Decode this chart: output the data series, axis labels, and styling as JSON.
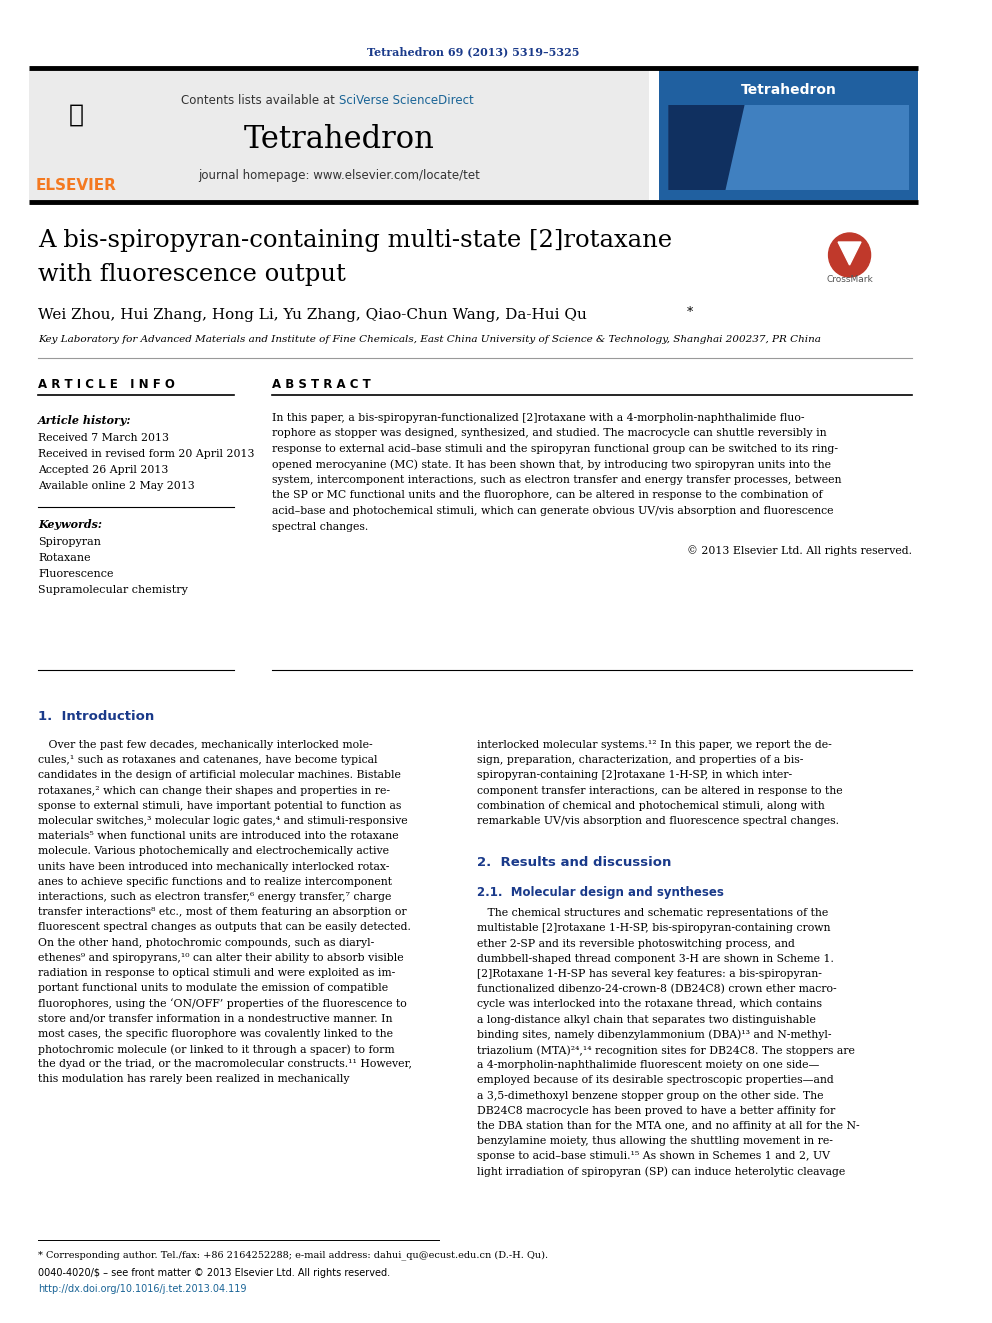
{
  "journal_ref": "Tetrahedron 69 (2013) 5319–5325",
  "header_contents": "Contents lists available at SciVerse ScienceDirect",
  "journal_name": "Tetrahedron",
  "journal_homepage": "journal homepage: www.elsevier.com/locate/tet",
  "title": "A bis-spiropyran-containing multi-state [2]rotaxane\nwith fluorescence output",
  "authors": "Wei Zhou, Hui Zhang, Hong Li, Yu Zhang, Qiao-Chun Wang, Da-Hui Qu",
  "affiliation": "Key Laboratory for Advanced Materials and Institute of Fine Chemicals, East China University of Science & Technology, Shanghai 200237, PR China",
  "article_info_header": "A R T I C L E   I N F O",
  "abstract_header": "A B S T R A C T",
  "article_history_label": "Article history:",
  "received": "Received 7 March 2013",
  "revised": "Received in revised form 20 April 2013",
  "accepted": "Accepted 26 April 2013",
  "available": "Available online 2 May 2013",
  "keywords_label": "Keywords:",
  "keywords": [
    "Spiropyran",
    "Rotaxane",
    "Fluorescence",
    "Supramolecular chemistry"
  ],
  "abstract_text": "In this paper, a bis-spiropyran-functionalized [2]rotaxane with a 4-morpholin-naphthalimide fluorophore as stopper was designed, synthesized, and studied. The macrocycle can shuttle reversibly in response to external acid–base stimuli and the spiropyran functional group can be switched to its ring-opened merocyanine (MC) state. It has been shown that, by introducing two spiropyran units into the system, intercomponent interactions, such as electron transfer and energy transfer processes, between the SP or MC functional units and the fluorophore, can be altered in response to the combination of acid–base and photochemical stimuli, which can generate obvious UV/vis absorption and fluorescence spectral changes.",
  "copyright": "© 2013 Elsevier Ltd. All rights reserved.",
  "section1_title": "1.  Introduction",
  "section1_col1": "Over the past few decades, mechanically interlocked molecules,¹ such as rotaxanes and catenanes, have become typical candidates in the design of artificial molecular machines. Bistable rotaxanes,² which can change their shapes and properties in response to external stimuli, have important potential to function as molecular switches,³ molecular logic gates,⁴ and stimuli-responsive materials⁵ when functional units are introduced into the rotaxane molecule. Various photochemically and electrochemically active units have been introduced into mechanically interlocked rotaxanes to achieve specific functions and to realize intercomponent interactions, such as electron transfer,⁶ energy transfer,⁷ charge transfer interactions⁸ etc., most of them featuring an absorption or fluorescent spectral changes as outputs that can be easily detected. On the other hand, photochromic compounds, such as diarylethenes⁹ and spiropyrans,¹⁰ can alter their ability to absorb visible radiation in response to optical stimuli and were exploited as important functional units to modulate the emission of compatible fluorophores, using the ‘ON/OFF’ properties of the fluorescence to store and/or transfer information in a nondestructive manner. In most cases, the specific fluorophore was covalently linked to the photochromic molecule (or linked to it through a spacer) to form the dyad or the triad, or the macromolecular constructs.¹¹ However, this modulation has rarely been realized in mechanically",
  "section1_col2": "interlocked molecular systems.¹² In this paper, we report the design, preparation, characterization, and properties of a bis-spiropyran-containing [2]rotaxane 1-H-SP, in which intercomponent transfer interactions, can be altered in response to the combination of chemical and photochemical stimuli, along with remarkable UV/vis absorption and fluorescence spectral changes.",
  "section2_title": "2.  Results and discussion",
  "section21_title": "2.1.  Molecular design and syntheses",
  "section21_text": "The chemical structures and schematic representations of the multistable [2]rotaxane 1-H-SP, bis-spiropyran-containing crown ether 2-SP and its reversible photoswitching process, and dumbbell-shaped thread component 3-H are shown in Scheme 1. [2]Rotaxane 1-H-SP has several key features: a bis-spiropyran-functionalized dibenzo-24-crown-8 (DB24C8) crown ether macrocycle was interlocked into the rotaxane thread, which contains a long-distance alkyl chain that separates two distinguishable binding sites, namely dibenzylammonium (DBA)¹³ and N-methyltriazolium (MTA)²⁴,¹⁴ recognition sites for DB24C8. The stoppers are a 4-morpholin-naphthalimide fluorescent moiety on one side—employed because of its desirable spectroscopic properties—and a 3,5-dimethoxyl benzene stopper group on the other side. The DB24C8 macrocycle has been proved to have a better affinity for the DBA station than for the MTA one, and no affinity at all for the N-benzylamine moiety, thus allowing the shuttling movement in response to acid–base stimuli.¹⁵ As shown in Schemes 1 and 2, UV light irradiation of spiropyran (SP) can induce heterolytic cleavage",
  "footnote_star": "* Corresponding author. Tel./fax: +86 2164252288; e-mail address: dahui_qu@ecust.edu.cn (D.-H. Qu).",
  "footer_left": "0040-4020/$ – see front matter © 2013 Elsevier Ltd. All rights reserved.",
  "footer_doi": "http://dx.doi.org/10.1016/j.tet.2013.04.119",
  "bg_color": "#ffffff",
  "header_bg": "#e8e8e8",
  "journal_ref_color": "#1a3a8a",
  "elsevier_orange": "#f47920",
  "link_color": "#1a6496",
  "section_title_color": "#1a3a8a",
  "text_color": "#000000"
}
